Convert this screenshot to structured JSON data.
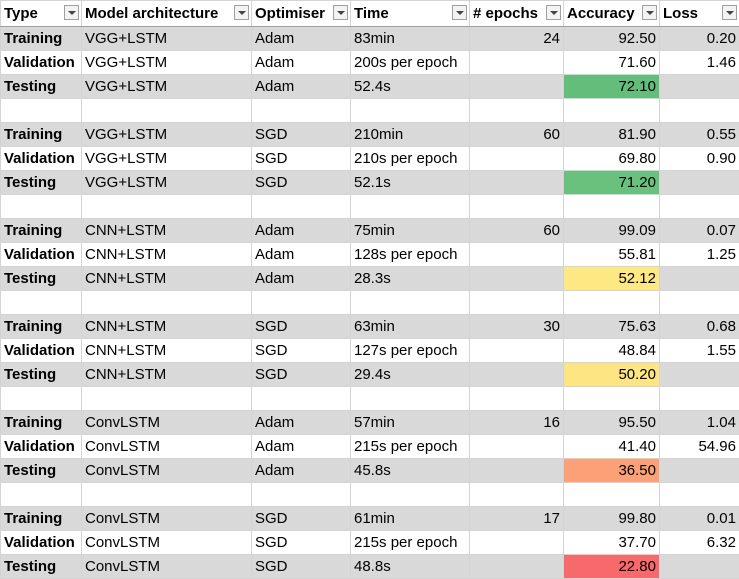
{
  "headers": [
    "Type",
    "Model architecture",
    "Optimiser",
    "Time",
    "# epochs",
    "Accuracy",
    "Loss"
  ],
  "groups": [
    {
      "rows": [
        {
          "type": "Training",
          "model": "VGG+LSTM",
          "optimiser": "Adam",
          "time": "83min",
          "epochs": "24",
          "accuracy": "92.50",
          "loss": "0.20"
        },
        {
          "type": "Validation",
          "model": "VGG+LSTM",
          "optimiser": "Adam",
          "time": "200s per epoch",
          "epochs": "",
          "accuracy": "71.60",
          "loss": "1.46"
        },
        {
          "type": "Testing",
          "model": "VGG+LSTM",
          "optimiser": "Adam",
          "time": "52.4s",
          "epochs": "",
          "accuracy": "72.10",
          "loss": "",
          "accuracy_color": "#63be7b"
        }
      ]
    },
    {
      "rows": [
        {
          "type": "Training",
          "model": "VGG+LSTM",
          "optimiser": "SGD",
          "time": "210min",
          "epochs": "60",
          "accuracy": "81.90",
          "loss": "0.55"
        },
        {
          "type": "Validation",
          "model": "VGG+LSTM",
          "optimiser": "SGD",
          "time": "210s per epoch",
          "epochs": "",
          "accuracy": "69.80",
          "loss": "0.90"
        },
        {
          "type": "Testing",
          "model": "VGG+LSTM",
          "optimiser": "SGD",
          "time": "52.1s",
          "epochs": "",
          "accuracy": "71.20",
          "loss": "",
          "accuracy_color": "#6ac07d"
        }
      ]
    },
    {
      "rows": [
        {
          "type": "Training",
          "model": "CNN+LSTM",
          "optimiser": "Adam",
          "time": "75min",
          "epochs": "60",
          "accuracy": "99.09",
          "loss": "0.07"
        },
        {
          "type": "Validation",
          "model": "CNN+LSTM",
          "optimiser": "Adam",
          "time": "128s per epoch",
          "epochs": "",
          "accuracy": "55.81",
          "loss": "1.25"
        },
        {
          "type": "Testing",
          "model": "CNN+LSTM",
          "optimiser": "Adam",
          "time": "28.3s",
          "epochs": "",
          "accuracy": "52.12",
          "loss": "",
          "accuracy_color": "#fde884"
        }
      ]
    },
    {
      "rows": [
        {
          "type": "Training",
          "model": "CNN+LSTM",
          "optimiser": "SGD",
          "time": "63min",
          "epochs": "30",
          "accuracy": "75.63",
          "loss": "0.68"
        },
        {
          "type": "Validation",
          "model": "CNN+LSTM",
          "optimiser": "SGD",
          "time": "127s per epoch",
          "epochs": "",
          "accuracy": "48.84",
          "loss": "1.55"
        },
        {
          "type": "Testing",
          "model": "CNN+LSTM",
          "optimiser": "SGD",
          "time": "29.4s",
          "epochs": "",
          "accuracy": "50.20",
          "loss": "",
          "accuracy_color": "#fde583"
        }
      ]
    },
    {
      "rows": [
        {
          "type": "Training",
          "model": "ConvLSTM",
          "optimiser": "Adam",
          "time": "57min",
          "epochs": "16",
          "accuracy": "95.50",
          "loss": "1.04"
        },
        {
          "type": "Validation",
          "model": "ConvLSTM",
          "optimiser": "Adam",
          "time": "215s per epoch",
          "epochs": "",
          "accuracy": "41.40",
          "loss": "54.96"
        },
        {
          "type": "Testing",
          "model": "ConvLSTM",
          "optimiser": "Adam",
          "time": "45.8s",
          "epochs": "",
          "accuracy": "36.50",
          "loss": "",
          "accuracy_color": "#fba077"
        }
      ]
    },
    {
      "rows": [
        {
          "type": "Training",
          "model": "ConvLSTM",
          "optimiser": "SGD",
          "time": "61min",
          "epochs": "17",
          "accuracy": "99.80",
          "loss": "0.01"
        },
        {
          "type": "Validation",
          "model": "ConvLSTM",
          "optimiser": "SGD",
          "time": "215s per epoch",
          "epochs": "",
          "accuracy": "37.70",
          "loss": "6.32"
        },
        {
          "type": "Testing",
          "model": "ConvLSTM",
          "optimiser": "SGD",
          "time": "48.8s",
          "epochs": "",
          "accuracy": "22.80",
          "loss": "",
          "accuracy_color": "#f8696b"
        }
      ]
    }
  ]
}
